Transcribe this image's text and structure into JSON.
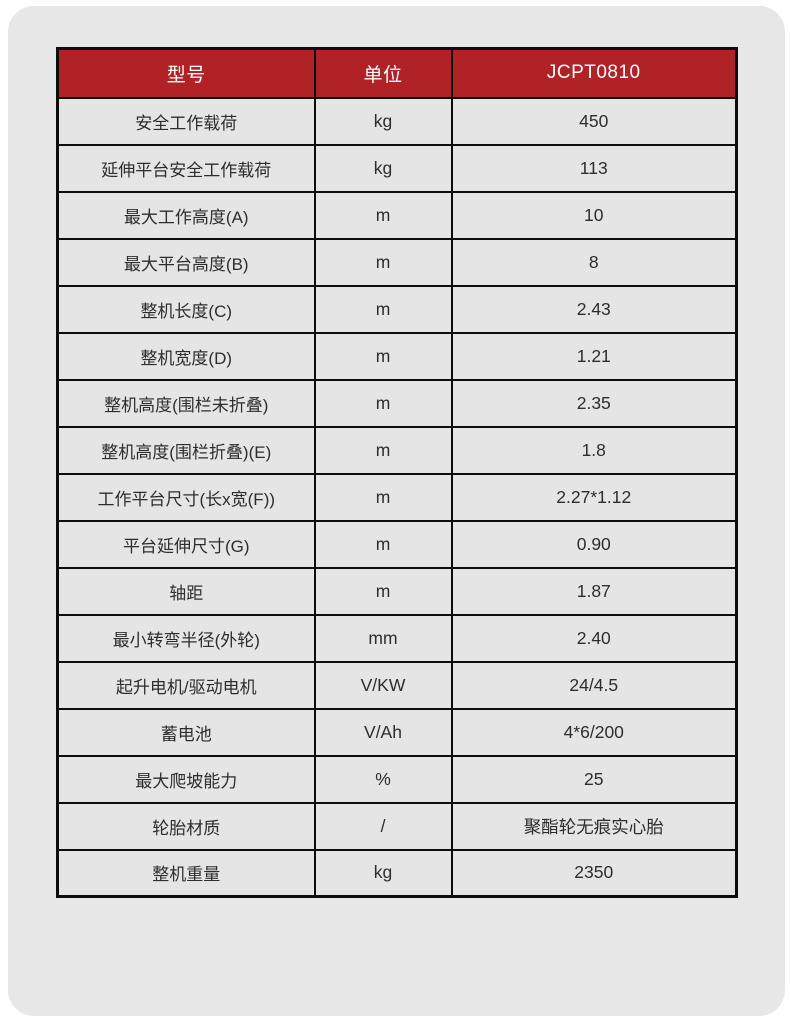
{
  "colors": {
    "header_bg": "#B02226",
    "header_text": "#FFFFFF",
    "cell_bg": "#E5E5E5",
    "panel_bg": "#E7E7E7",
    "border": "#0D0D0D",
    "text": "#2D2D2D"
  },
  "table": {
    "headers": [
      "型号",
      "单位",
      "JCPT0810"
    ],
    "rows": [
      {
        "label": "安全工作载荷",
        "unit": "kg",
        "value": "450"
      },
      {
        "label": "延伸平台安全工作载荷",
        "unit": "kg",
        "value": "113"
      },
      {
        "label": "最大工作高度(A)",
        "unit": "m",
        "value": "10"
      },
      {
        "label": "最大平台高度(B)",
        "unit": "m",
        "value": "8"
      },
      {
        "label": "整机长度(C)",
        "unit": "m",
        "value": "2.43"
      },
      {
        "label": "整机宽度(D)",
        "unit": "m",
        "value": "1.21"
      },
      {
        "label": "整机高度(围栏未折叠)",
        "unit": "m",
        "value": "2.35"
      },
      {
        "label": "整机高度(围栏折叠)(E)",
        "unit": "m",
        "value": "1.8"
      },
      {
        "label": "工作平台尺寸(长x宽(F))",
        "unit": "m",
        "value": "2.27*1.12"
      },
      {
        "label": "平台延伸尺寸(G)",
        "unit": "m",
        "value": "0.90"
      },
      {
        "label": "轴距",
        "unit": "m",
        "value": "1.87"
      },
      {
        "label": "最小转弯半径(外轮)",
        "unit": "mm",
        "value": "2.40"
      },
      {
        "label": "起升电机/驱动电机",
        "unit": "V/KW",
        "value": "24/4.5"
      },
      {
        "label": "蓄电池",
        "unit": "V/Ah",
        "value": "4*6/200"
      },
      {
        "label": "最大爬坡能力",
        "unit": "%",
        "value": "25"
      },
      {
        "label": "轮胎材质",
        "unit": "/",
        "value": "聚酯轮无痕实心胎"
      },
      {
        "label": "整机重量",
        "unit": "kg",
        "value": "2350"
      }
    ]
  }
}
